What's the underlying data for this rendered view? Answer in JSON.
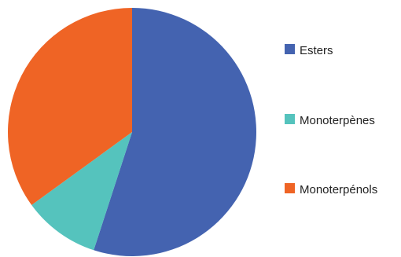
{
  "chart_data": {
    "type": "pie",
    "title": "",
    "legend_position": "right",
    "slices": [
      {
        "label": "Esters",
        "value": 55,
        "color": "#4463b0"
      },
      {
        "label": "Monoterpènes",
        "value": 10,
        "color": "#55c3bd"
      },
      {
        "label": "Monoterpénols",
        "value": 35,
        "color": "#ef6425"
      }
    ]
  }
}
